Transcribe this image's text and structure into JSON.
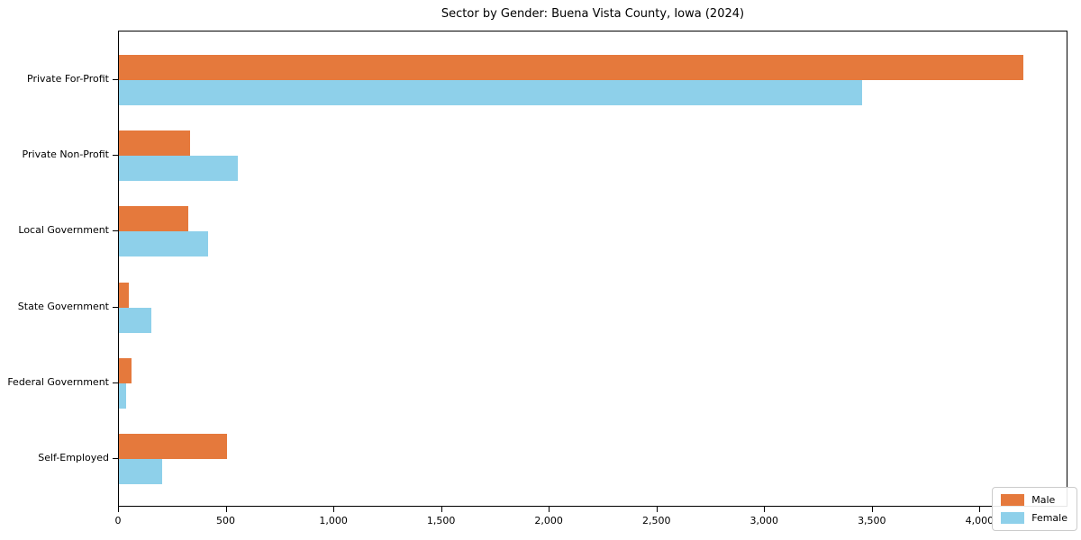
{
  "title": "Sector by Gender: Buena Vista County, Iowa (2024)",
  "chart_data": {
    "type": "bar",
    "orientation": "horizontal",
    "title": "Sector by Gender: Buena Vista County, Iowa (2024)",
    "categories": [
      "Private For-Profit",
      "Private Non-Profit",
      "Local Government",
      "State Government",
      "Federal Government",
      "Self-Employed"
    ],
    "series": [
      {
        "name": "Male",
        "color": "#e5793c",
        "values": [
          4200,
          330,
          320,
          45,
          60,
          500
        ]
      },
      {
        "name": "Female",
        "color": "#8ed0ea",
        "values": [
          3450,
          550,
          415,
          150,
          35,
          200
        ]
      }
    ],
    "xlabel": "",
    "ylabel": "",
    "xlim": [
      0,
      4400
    ],
    "xticks": [
      0,
      500,
      1000,
      1500,
      2000,
      2500,
      3000,
      3500,
      4000
    ],
    "xtick_labels": [
      "0",
      "500",
      "1,000",
      "1,500",
      "2,000",
      "2,500",
      "3,000",
      "3,500",
      "4,000"
    ],
    "grid": false,
    "legend_position": "lower right",
    "background": "#ffffff",
    "axis_color": "#000000"
  }
}
